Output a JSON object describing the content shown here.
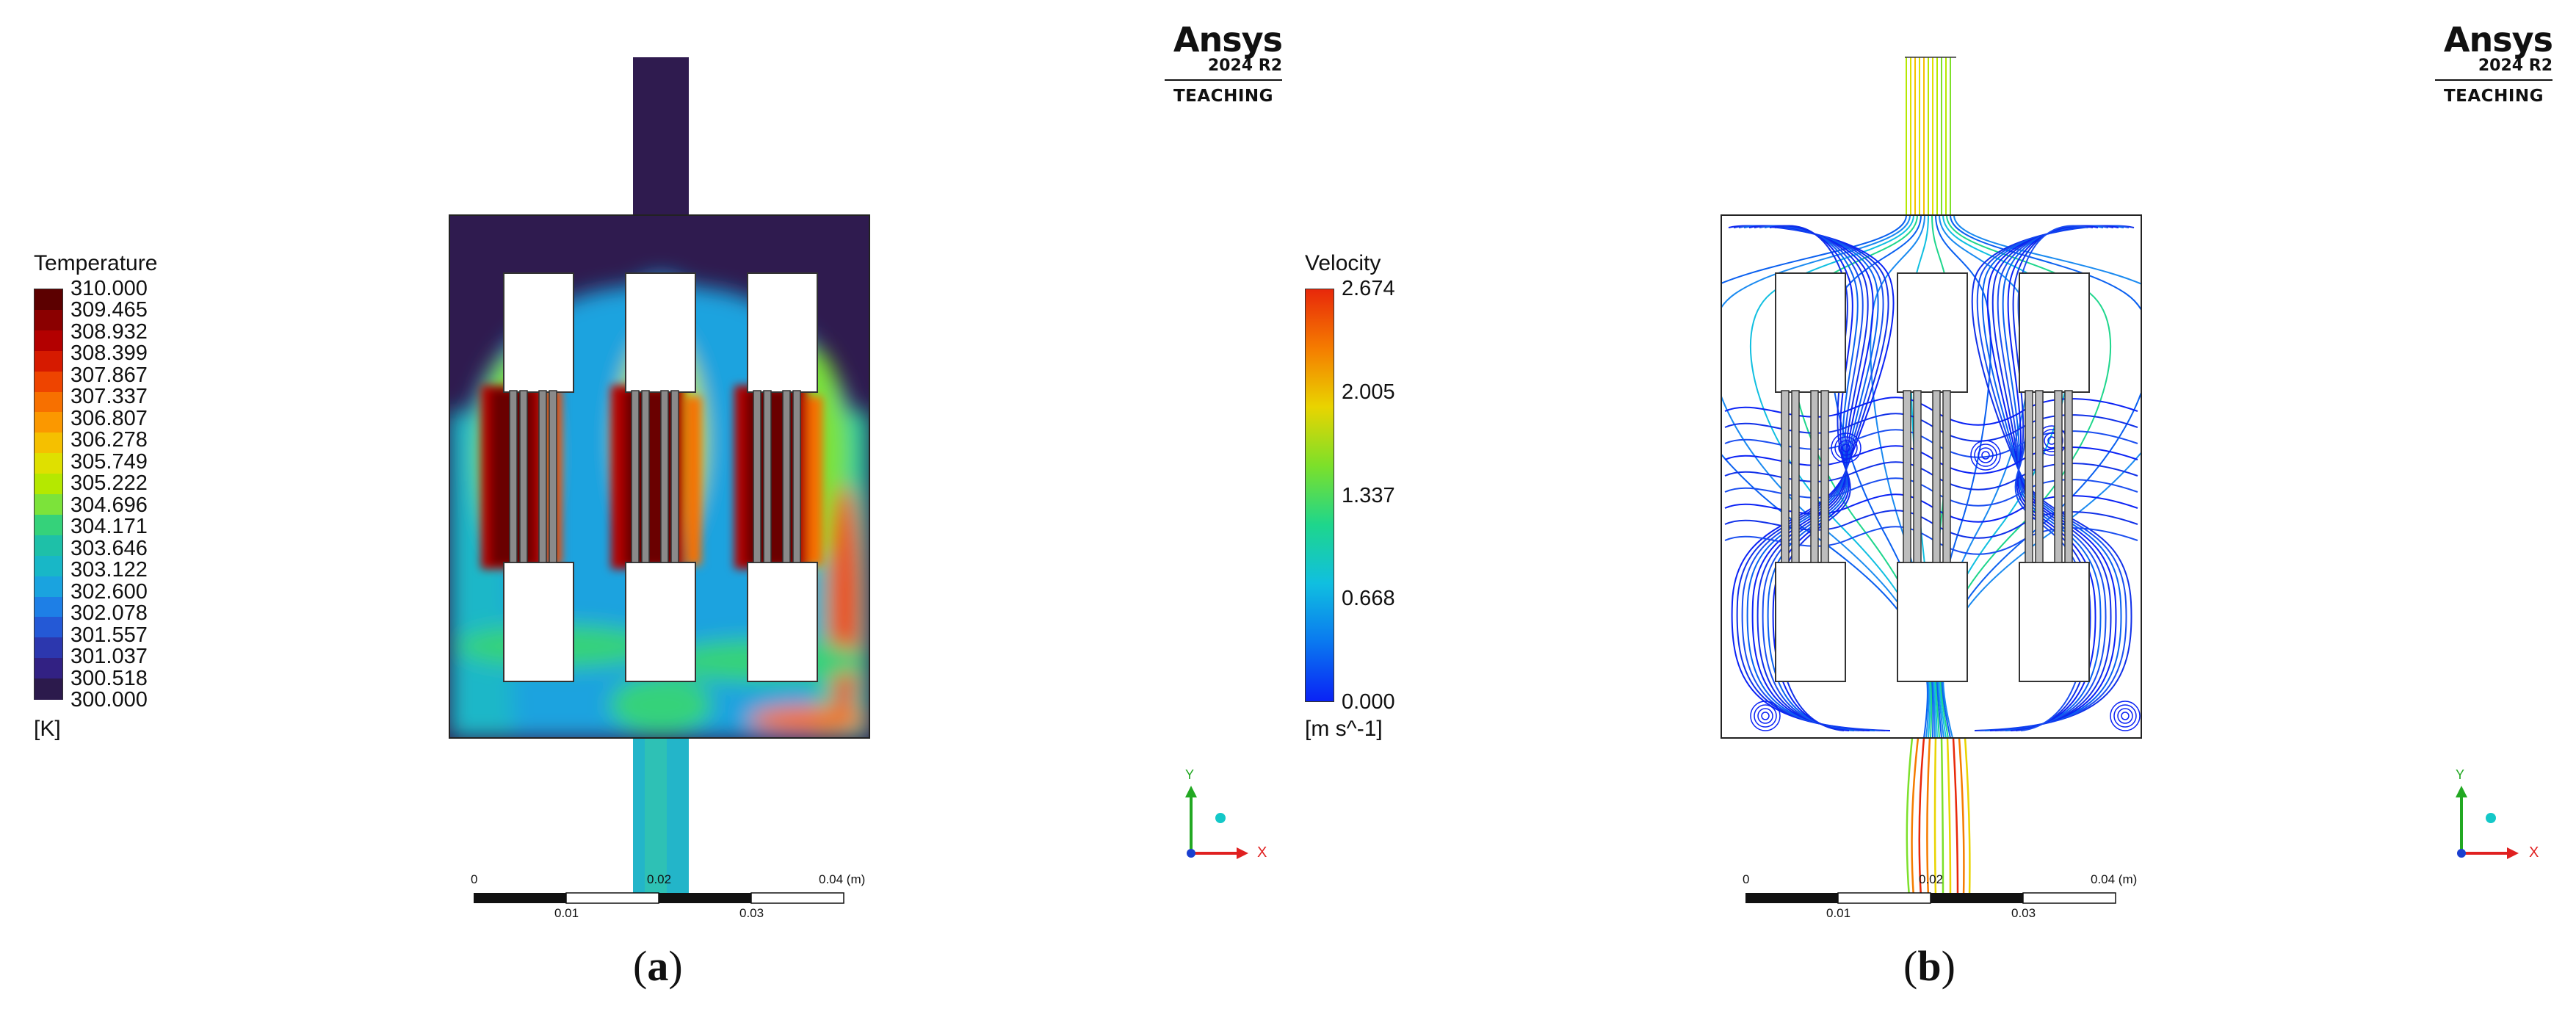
{
  "panels": [
    {
      "caption_letter": "a",
      "legend": {
        "title": "Temperature",
        "unit": "[K]",
        "ticks": [
          "310.000",
          "309.465",
          "308.932",
          "308.399",
          "307.867",
          "307.337",
          "306.807",
          "306.278",
          "305.749",
          "305.222",
          "304.696",
          "304.171",
          "303.646",
          "303.122",
          "302.600",
          "302.078",
          "301.557",
          "301.037",
          "300.518",
          "300.000"
        ],
        "colors": [
          "#5c0000",
          "#8b0000",
          "#b30000",
          "#d61a00",
          "#ee4400",
          "#f77000",
          "#fb9800",
          "#f5c000",
          "#dfe000",
          "#b5e800",
          "#7ce33a",
          "#35d27a",
          "#1ec0a8",
          "#18b7c7",
          "#1aa3df",
          "#1e7fe6",
          "#2459d6",
          "#2c37ae",
          "#322183",
          "#2c1a4c"
        ]
      },
      "brand": {
        "name": "Ansys",
        "version": "2024 R2",
        "edition": "TEACHING"
      },
      "scale": {
        "ticks_top": [
          "0",
          "0.02",
          "0.04 (m)"
        ],
        "ticks_bottom": [
          "0.01",
          "0.03"
        ]
      },
      "axes": {
        "x": "X",
        "y": "Y"
      }
    },
    {
      "caption_letter": "b",
      "legend": {
        "title": "Velocity",
        "unit": "[m s^-1]",
        "ticks": [
          "2.674",
          "2.005",
          "1.337",
          "0.668",
          "0.000"
        ],
        "colors": [
          "#e8280a",
          "#f57c00",
          "#e9d400",
          "#7ce02a",
          "#1ed68c",
          "#10bfe0",
          "#0a78f0",
          "#0a22f5"
        ]
      },
      "brand": {
        "name": "Ansys",
        "version": "2024 R2",
        "edition": "TEACHING"
      },
      "scale": {
        "ticks_top": [
          "0",
          "0.02",
          "0.04 (m)"
        ],
        "ticks_bottom": [
          "0.01",
          "0.03"
        ]
      },
      "axes": {
        "x": "X",
        "y": "Y"
      }
    }
  ]
}
